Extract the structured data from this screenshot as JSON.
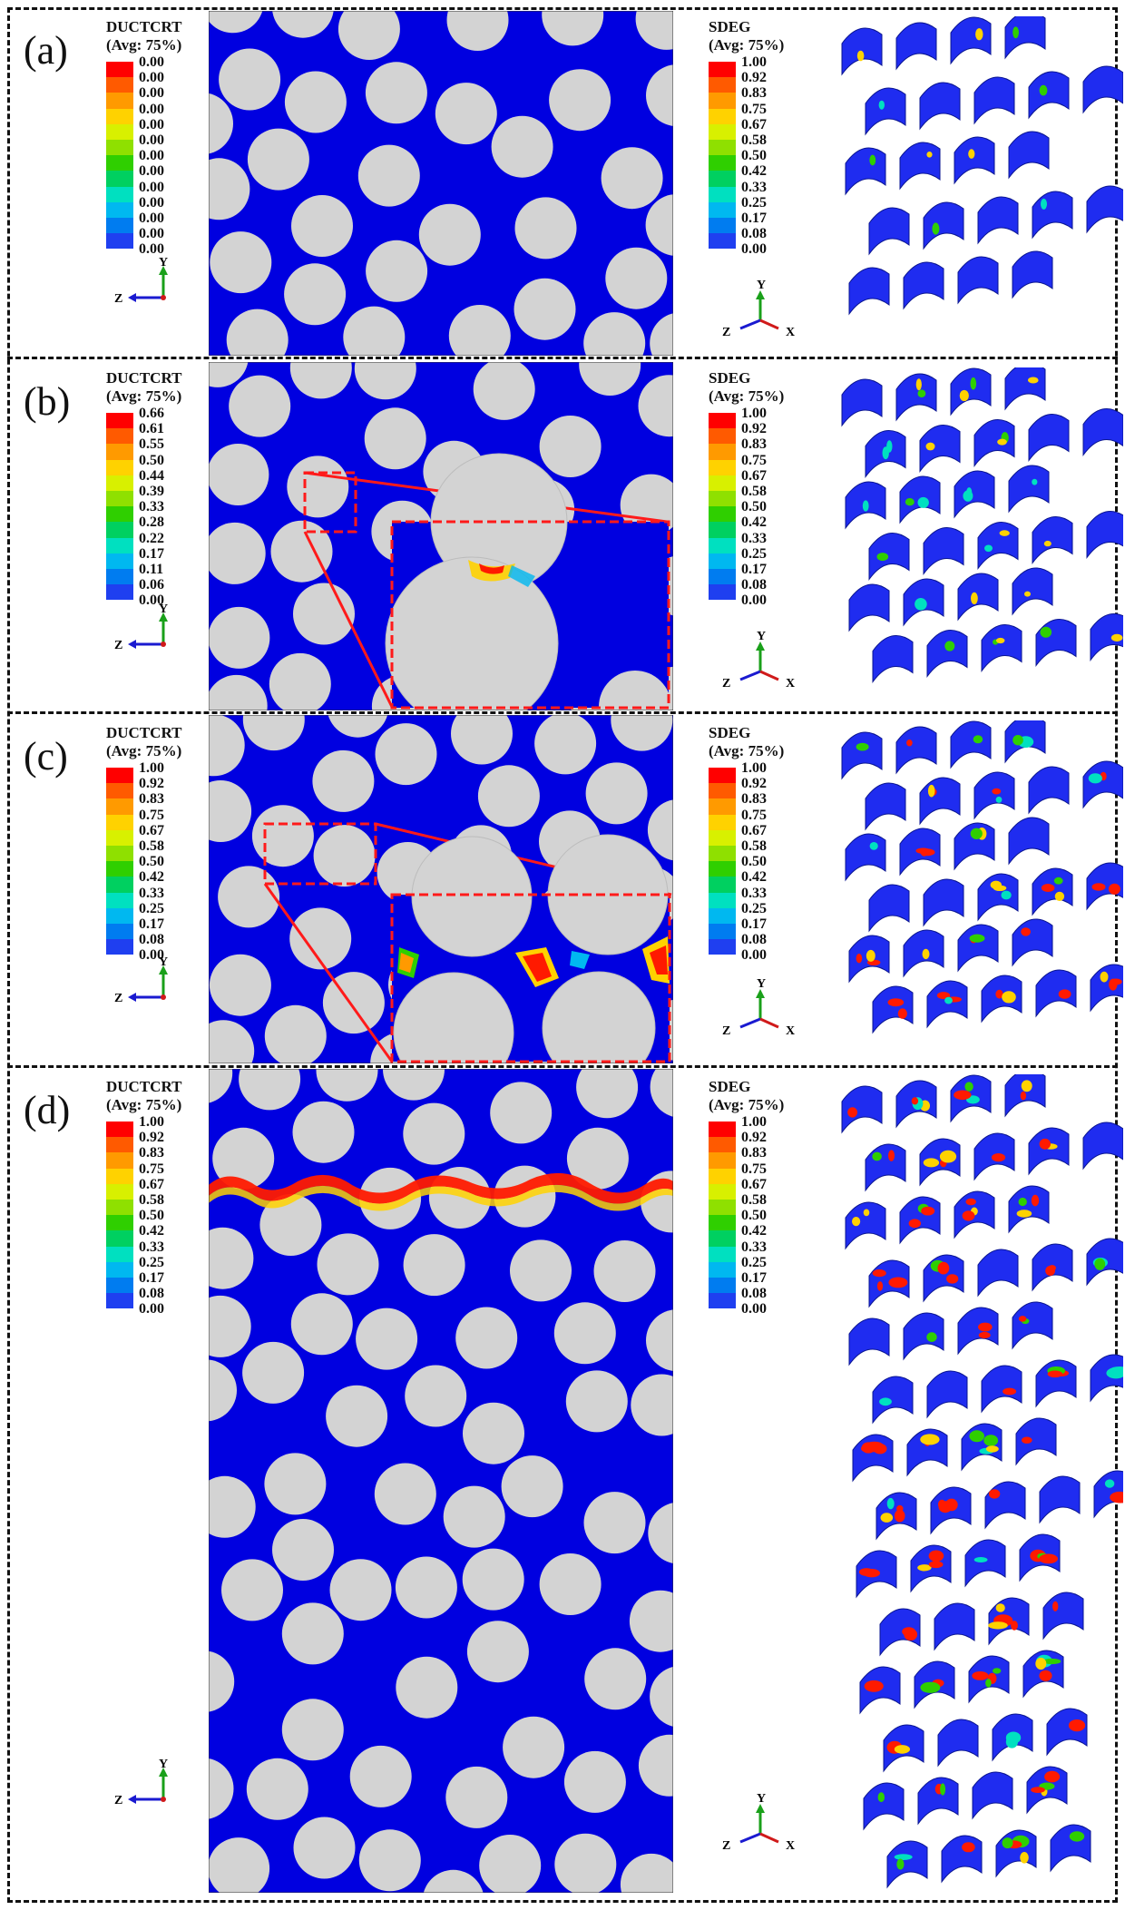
{
  "panels": [
    {
      "label": "(a)",
      "left_legend": {
        "title": "DUCTCRT",
        "subtitle": "(Avg: 75%)",
        "ticks": [
          "0.00",
          "0.00",
          "0.00",
          "0.00",
          "0.00",
          "0.00",
          "0.00",
          "0.00",
          "0.00",
          "0.00",
          "0.00",
          "0.00",
          "0.00"
        ]
      },
      "right_legend": {
        "title": "SDEG",
        "subtitle": "(Avg: 75%)",
        "ticks": [
          "1.00",
          "0.92",
          "0.83",
          "0.75",
          "0.67",
          "0.58",
          "0.50",
          "0.42",
          "0.33",
          "0.25",
          "0.17",
          "0.08",
          "0.00"
        ]
      }
    },
    {
      "label": "(b)",
      "left_legend": {
        "title": "DUCTCRT",
        "subtitle": "(Avg: 75%)",
        "ticks": [
          "0.66",
          "0.61",
          "0.55",
          "0.50",
          "0.44",
          "0.39",
          "0.33",
          "0.28",
          "0.22",
          "0.17",
          "0.11",
          "0.06",
          "0.00"
        ]
      },
      "right_legend": {
        "title": "SDEG",
        "subtitle": "(Avg: 75%)",
        "ticks": [
          "1.00",
          "0.92",
          "0.83",
          "0.75",
          "0.67",
          "0.58",
          "0.50",
          "0.42",
          "0.33",
          "0.25",
          "0.17",
          "0.08",
          "0.00"
        ]
      }
    },
    {
      "label": "(c)",
      "left_legend": {
        "title": "DUCTCRT",
        "subtitle": "(Avg: 75%)",
        "ticks": [
          "1.00",
          "0.92",
          "0.83",
          "0.75",
          "0.67",
          "0.58",
          "0.50",
          "0.42",
          "0.33",
          "0.25",
          "0.17",
          "0.08",
          "0.00"
        ]
      },
      "right_legend": {
        "title": "SDEG",
        "subtitle": "(Avg: 75%)",
        "ticks": [
          "1.00",
          "0.92",
          "0.83",
          "0.75",
          "0.67",
          "0.58",
          "0.50",
          "0.42",
          "0.33",
          "0.25",
          "0.17",
          "0.08",
          "0.00"
        ]
      }
    },
    {
      "label": "(d)",
      "left_legend": {
        "title": "DUCTCRT",
        "subtitle": "(Avg: 75%)",
        "ticks": [
          "1.00",
          "0.92",
          "0.83",
          "0.75",
          "0.67",
          "0.58",
          "0.50",
          "0.42",
          "0.33",
          "0.25",
          "0.17",
          "0.08",
          "0.00"
        ]
      },
      "right_legend": {
        "title": "SDEG",
        "subtitle": "(Avg: 75%)",
        "ticks": [
          "1.00",
          "0.92",
          "0.83",
          "0.75",
          "0.67",
          "0.58",
          "0.50",
          "0.42",
          "0.33",
          "0.25",
          "0.17",
          "0.08",
          "0.00"
        ]
      }
    }
  ],
  "axis_labels": {
    "y": "Y",
    "z": "Z",
    "x": "X"
  },
  "colormap": [
    "#ff0000",
    "#ff5a00",
    "#ff9a00",
    "#ffd200",
    "#d8f000",
    "#8fe000",
    "#2fcf00",
    "#00d060",
    "#00e0c0",
    "#00b8f0",
    "#007cf0",
    "#1f3ff0",
    "#0000e8"
  ],
  "colors": {
    "matrix": "#0000e0",
    "fiber": "#d3d3d3",
    "damage": "#ff1a00",
    "zoom_box": "#ff1a1a",
    "frame": "#111111"
  }
}
